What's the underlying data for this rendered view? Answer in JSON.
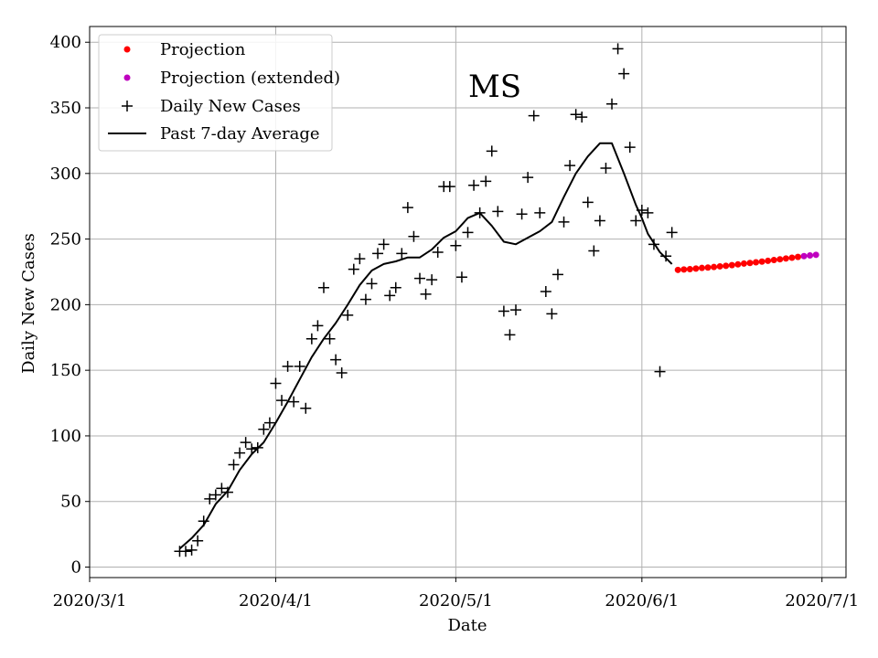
{
  "chart_data": {
    "type": "scatter",
    "title": "MS",
    "xlabel": "Date",
    "ylabel": "Daily New Cases",
    "x_tick_labels": [
      "2020/3/1",
      "2020/4/1",
      "2020/5/1",
      "2020/6/1",
      "2020/7/1"
    ],
    "x_ticks": [
      "2020-03-01",
      "2020-04-01",
      "2020-05-01",
      "2020-06-01",
      "2020-07-01"
    ],
    "y_ticks": [
      0,
      50,
      100,
      150,
      200,
      250,
      300,
      350,
      400
    ],
    "xlim": [
      "2020-03-01",
      "2020-07-05"
    ],
    "ylim": [
      -8,
      412
    ],
    "grid": true,
    "legend_position": "top-left",
    "legend": [
      {
        "label": "Projection",
        "marker": "dot",
        "color": "#ff0000"
      },
      {
        "label": "Projection (extended)",
        "marker": "dot",
        "color": "#bf00bf"
      },
      {
        "label": "Daily New Cases",
        "marker": "plus",
        "color": "#000000"
      },
      {
        "label": "Past 7-day Average",
        "marker": "line",
        "color": "#000000"
      }
    ],
    "series": [
      {
        "name": "Daily New Cases",
        "style": "plus",
        "color": "#000000",
        "x": [
          "2020-03-16",
          "2020-03-17",
          "2020-03-18",
          "2020-03-19",
          "2020-03-20",
          "2020-03-21",
          "2020-03-22",
          "2020-03-23",
          "2020-03-24",
          "2020-03-25",
          "2020-03-26",
          "2020-03-27",
          "2020-03-28",
          "2020-03-29",
          "2020-03-30",
          "2020-03-31",
          "2020-04-01",
          "2020-04-02",
          "2020-04-03",
          "2020-04-04",
          "2020-04-05",
          "2020-04-06",
          "2020-04-07",
          "2020-04-08",
          "2020-04-09",
          "2020-04-10",
          "2020-04-11",
          "2020-04-12",
          "2020-04-13",
          "2020-04-14",
          "2020-04-15",
          "2020-04-16",
          "2020-04-17",
          "2020-04-18",
          "2020-04-19",
          "2020-04-20",
          "2020-04-21",
          "2020-04-22",
          "2020-04-23",
          "2020-04-24",
          "2020-04-25",
          "2020-04-26",
          "2020-04-27",
          "2020-04-28",
          "2020-04-29",
          "2020-04-30",
          "2020-05-01",
          "2020-05-02",
          "2020-05-03",
          "2020-05-04",
          "2020-05-05",
          "2020-05-06",
          "2020-05-07",
          "2020-05-08",
          "2020-05-09",
          "2020-05-10",
          "2020-05-11",
          "2020-05-12",
          "2020-05-13",
          "2020-05-14",
          "2020-05-15",
          "2020-05-16",
          "2020-05-17",
          "2020-05-18",
          "2020-05-19",
          "2020-05-20",
          "2020-05-21",
          "2020-05-22",
          "2020-05-23",
          "2020-05-24",
          "2020-05-25",
          "2020-05-26",
          "2020-05-27",
          "2020-05-28",
          "2020-05-29",
          "2020-05-30",
          "2020-05-31",
          "2020-06-01",
          "2020-06-02",
          "2020-06-03",
          "2020-06-04",
          "2020-06-05",
          "2020-06-06"
        ],
        "y": [
          12,
          12,
          13,
          20,
          35,
          52,
          55,
          60,
          57,
          78,
          87,
          95,
          90,
          91,
          105,
          110,
          140,
          127,
          153,
          126,
          153,
          121,
          174,
          184,
          213,
          174,
          158,
          148,
          192,
          227,
          235,
          204,
          216,
          239,
          246,
          207,
          213,
          239,
          274,
          252,
          220,
          208,
          219,
          240,
          290,
          290,
          245,
          221,
          255,
          291,
          270,
          294,
          317,
          271,
          195,
          177,
          196,
          269,
          297,
          344,
          270,
          210,
          193,
          223,
          263,
          306,
          345,
          343,
          278,
          241,
          264,
          304,
          353,
          395,
          376,
          320,
          264,
          272,
          270,
          246,
          149,
          237,
          255
        ]
      },
      {
        "name": "Past 7-day Average",
        "style": "line",
        "color": "#000000",
        "x": [
          "2020-03-16",
          "2020-03-18",
          "2020-03-20",
          "2020-03-22",
          "2020-03-24",
          "2020-03-26",
          "2020-03-28",
          "2020-03-30",
          "2020-04-01",
          "2020-04-03",
          "2020-04-05",
          "2020-04-07",
          "2020-04-09",
          "2020-04-11",
          "2020-04-13",
          "2020-04-15",
          "2020-04-17",
          "2020-04-19",
          "2020-04-21",
          "2020-04-23",
          "2020-04-25",
          "2020-04-27",
          "2020-04-29",
          "2020-05-01",
          "2020-05-03",
          "2020-05-05",
          "2020-05-07",
          "2020-05-09",
          "2020-05-11",
          "2020-05-13",
          "2020-05-15",
          "2020-05-17",
          "2020-05-19",
          "2020-05-21",
          "2020-05-23",
          "2020-05-25",
          "2020-05-27",
          "2020-05-29",
          "2020-05-31",
          "2020-06-01",
          "2020-06-02",
          "2020-06-04",
          "2020-06-06"
        ],
        "y": [
          14,
          22,
          32,
          48,
          58,
          74,
          86,
          95,
          110,
          126,
          143,
          160,
          174,
          186,
          200,
          215,
          226,
          231,
          233,
          236,
          236,
          242,
          251,
          256,
          266,
          270,
          260,
          248,
          246,
          251,
          256,
          263,
          282,
          300,
          313,
          323,
          323,
          300,
          276,
          266,
          254,
          240,
          231
        ]
      },
      {
        "name": "Projection",
        "style": "dot",
        "color": "#ff0000",
        "x": [
          "2020-06-07",
          "2020-06-08",
          "2020-06-09",
          "2020-06-10",
          "2020-06-11",
          "2020-06-12",
          "2020-06-13",
          "2020-06-14",
          "2020-06-15",
          "2020-06-16",
          "2020-06-17",
          "2020-06-18",
          "2020-06-19",
          "2020-06-20",
          "2020-06-21",
          "2020-06-22",
          "2020-06-23",
          "2020-06-24",
          "2020-06-25",
          "2020-06-26",
          "2020-06-27"
        ],
        "y": [
          226.5,
          226.8,
          227.1,
          227.5,
          228.0,
          228.3,
          228.7,
          229.2,
          229.6,
          230.1,
          230.7,
          231.3,
          231.8,
          232.3,
          232.8,
          233.4,
          234.0,
          234.6,
          235.2,
          235.8,
          236.4
        ]
      },
      {
        "name": "Projection (extended)",
        "style": "dot",
        "color": "#bf00bf",
        "x": [
          "2020-06-28",
          "2020-06-29",
          "2020-06-30"
        ],
        "y": [
          237.0,
          237.5,
          238.0
        ]
      }
    ]
  }
}
